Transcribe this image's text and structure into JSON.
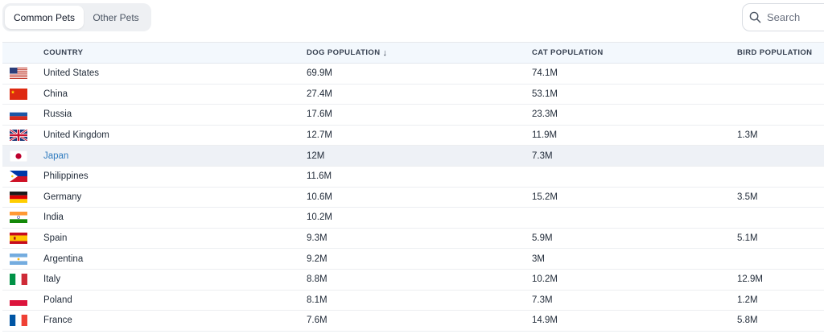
{
  "tabs": [
    {
      "label": "Common Pets",
      "active": true
    },
    {
      "label": "Other Pets",
      "active": false
    }
  ],
  "search": {
    "placeholder": "Search",
    "icon": "search-icon"
  },
  "table": {
    "headers": {
      "country": "COUNTRY",
      "dog": "DOG POPULATION",
      "dog_sort_icon": "↓",
      "cat": "CAT POPULATION",
      "bird": "BIRD POPULATION"
    },
    "rows": [
      {
        "flag": "us",
        "country": "United States",
        "dog": "69.9M",
        "cat": "74.1M",
        "bird": ""
      },
      {
        "flag": "cn",
        "country": "China",
        "dog": "27.4M",
        "cat": "53.1M",
        "bird": ""
      },
      {
        "flag": "ru",
        "country": "Russia",
        "dog": "17.6M",
        "cat": "23.3M",
        "bird": ""
      },
      {
        "flag": "gb",
        "country": "United Kingdom",
        "dog": "12.7M",
        "cat": "11.9M",
        "bird": "1.3M"
      },
      {
        "flag": "jp",
        "country": "Japan",
        "dog": "12M",
        "cat": "7.3M",
        "bird": "",
        "highlighted": true
      },
      {
        "flag": "ph",
        "country": "Philippines",
        "dog": "11.6M",
        "cat": "",
        "bird": ""
      },
      {
        "flag": "de",
        "country": "Germany",
        "dog": "10.6M",
        "cat": "15.2M",
        "bird": "3.5M"
      },
      {
        "flag": "in",
        "country": "India",
        "dog": "10.2M",
        "cat": "",
        "bird": ""
      },
      {
        "flag": "es",
        "country": "Spain",
        "dog": "9.3M",
        "cat": "5.9M",
        "bird": "5.1M"
      },
      {
        "flag": "ar",
        "country": "Argentina",
        "dog": "9.2M",
        "cat": "3M",
        "bird": ""
      },
      {
        "flag": "it",
        "country": "Italy",
        "dog": "8.8M",
        "cat": "10.2M",
        "bird": "12.9M"
      },
      {
        "flag": "pl",
        "country": "Poland",
        "dog": "8.1M",
        "cat": "7.3M",
        "bird": "1.2M"
      },
      {
        "flag": "fr",
        "country": "France",
        "dog": "7.6M",
        "cat": "14.9M",
        "bird": "5.8M"
      }
    ]
  }
}
